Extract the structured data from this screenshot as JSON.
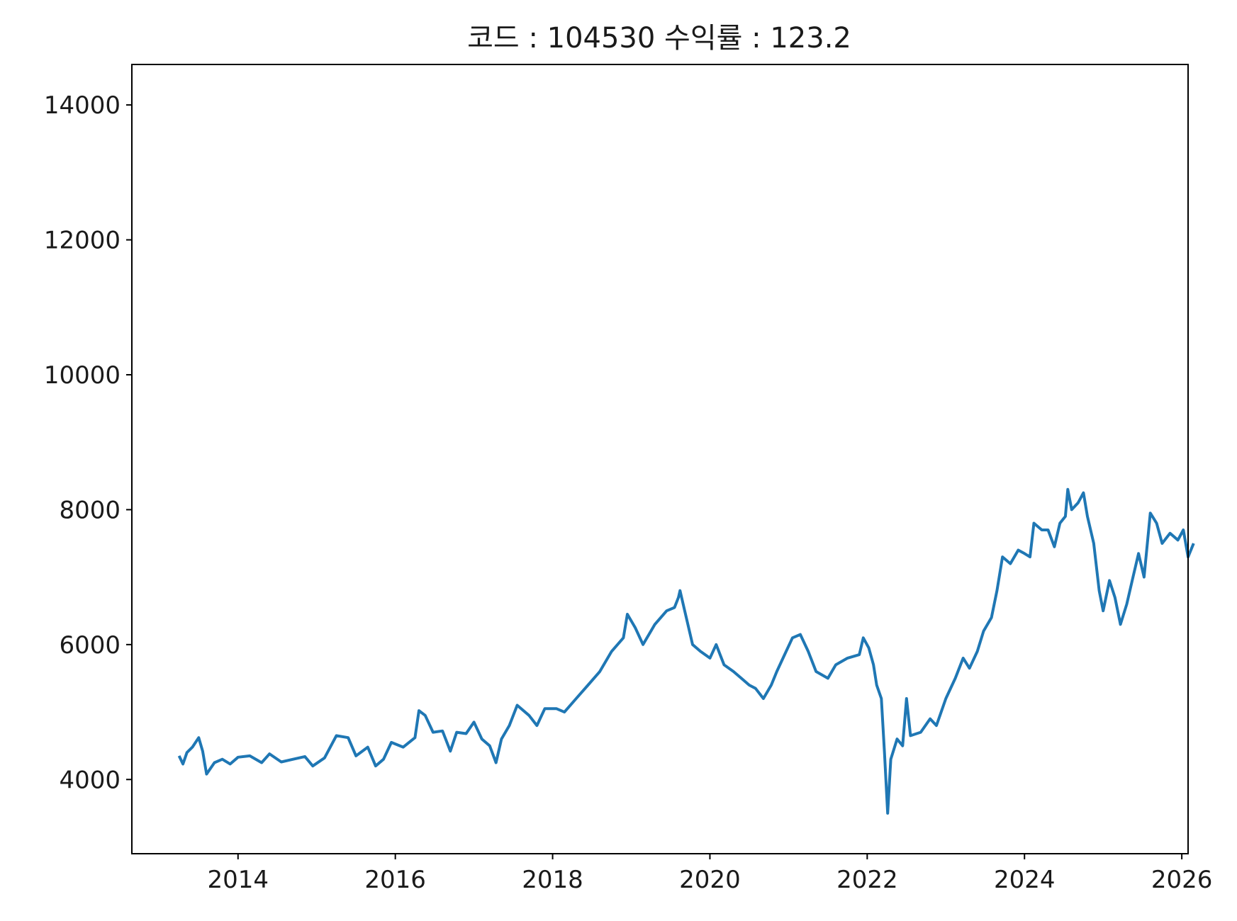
{
  "chart_data": {
    "type": "line",
    "title": "코드 : 104530 수익률 : 123.2",
    "xlabel": "",
    "ylabel": "",
    "x_ticks": [
      "2014",
      "2016",
      "2018",
      "2020",
      "2022",
      "2024",
      "2026"
    ],
    "y_ticks": [
      "4000",
      "6000",
      "8000",
      "10000",
      "12000",
      "14000"
    ],
    "xlim": [
      2012.65,
      2026.08
    ],
    "ylim": [
      2900,
      14600
    ],
    "grid": false,
    "legend": "none",
    "series": [
      {
        "color": "#1f77b4",
        "points": [
          [
            2013.25,
            4350
          ],
          [
            2013.3,
            4230
          ],
          [
            2013.35,
            4400
          ],
          [
            2013.42,
            4480
          ],
          [
            2013.5,
            4620
          ],
          [
            2013.55,
            4420
          ],
          [
            2013.6,
            4080
          ],
          [
            2013.7,
            4250
          ],
          [
            2013.8,
            4300
          ],
          [
            2013.9,
            4230
          ],
          [
            2014.0,
            4330
          ],
          [
            2014.15,
            4350
          ],
          [
            2014.3,
            4250
          ],
          [
            2014.4,
            4380
          ],
          [
            2014.55,
            4260
          ],
          [
            2014.7,
            4300
          ],
          [
            2014.85,
            4340
          ],
          [
            2014.95,
            4200
          ],
          [
            2015.1,
            4320
          ],
          [
            2015.25,
            4650
          ],
          [
            2015.4,
            4620
          ],
          [
            2015.5,
            4350
          ],
          [
            2015.65,
            4480
          ],
          [
            2015.75,
            4200
          ],
          [
            2015.85,
            4300
          ],
          [
            2015.95,
            4550
          ],
          [
            2016.1,
            4480
          ],
          [
            2016.25,
            4620
          ],
          [
            2016.3,
            5020
          ],
          [
            2016.38,
            4950
          ],
          [
            2016.48,
            4700
          ],
          [
            2016.6,
            4720
          ],
          [
            2016.7,
            4420
          ],
          [
            2016.78,
            4700
          ],
          [
            2016.9,
            4680
          ],
          [
            2017.0,
            4850
          ],
          [
            2017.1,
            4600
          ],
          [
            2017.2,
            4500
          ],
          [
            2017.28,
            4250
          ],
          [
            2017.35,
            4600
          ],
          [
            2017.45,
            4800
          ],
          [
            2017.55,
            5100
          ],
          [
            2017.7,
            4950
          ],
          [
            2017.8,
            4800
          ],
          [
            2017.9,
            5050
          ],
          [
            2018.05,
            5050
          ],
          [
            2018.15,
            5000
          ],
          [
            2018.3,
            5200
          ],
          [
            2018.45,
            5400
          ],
          [
            2018.6,
            5600
          ],
          [
            2018.75,
            5900
          ],
          [
            2018.9,
            6100
          ],
          [
            2018.95,
            6450
          ],
          [
            2019.05,
            6250
          ],
          [
            2019.15,
            6000
          ],
          [
            2019.3,
            6300
          ],
          [
            2019.45,
            6500
          ],
          [
            2019.55,
            6550
          ],
          [
            2019.6,
            6700
          ],
          [
            2019.62,
            6800
          ],
          [
            2019.68,
            6500
          ],
          [
            2019.78,
            6000
          ],
          [
            2019.88,
            5900
          ],
          [
            2020.0,
            5800
          ],
          [
            2020.08,
            6000
          ],
          [
            2020.18,
            5700
          ],
          [
            2020.3,
            5600
          ],
          [
            2020.4,
            5500
          ],
          [
            2020.5,
            5400
          ],
          [
            2020.58,
            5350
          ],
          [
            2020.68,
            5200
          ],
          [
            2020.78,
            5400
          ],
          [
            2020.85,
            5600
          ],
          [
            2020.95,
            5850
          ],
          [
            2021.05,
            6100
          ],
          [
            2021.15,
            6150
          ],
          [
            2021.25,
            5900
          ],
          [
            2021.35,
            5600
          ],
          [
            2021.5,
            5500
          ],
          [
            2021.6,
            5700
          ],
          [
            2021.75,
            5800
          ],
          [
            2021.9,
            5850
          ],
          [
            2021.95,
            6100
          ],
          [
            2022.02,
            5950
          ],
          [
            2022.08,
            5700
          ],
          [
            2022.12,
            5400
          ],
          [
            2022.18,
            5200
          ],
          [
            2022.22,
            4400
          ],
          [
            2022.26,
            3500
          ],
          [
            2022.3,
            4300
          ],
          [
            2022.38,
            4600
          ],
          [
            2022.45,
            4500
          ],
          [
            2022.5,
            5200
          ],
          [
            2022.55,
            4650
          ],
          [
            2022.68,
            4700
          ],
          [
            2022.8,
            4900
          ],
          [
            2022.88,
            4800
          ],
          [
            2023.0,
            5200
          ],
          [
            2023.12,
            5500
          ],
          [
            2023.22,
            5800
          ],
          [
            2023.3,
            5650
          ],
          [
            2023.4,
            5900
          ],
          [
            2023.48,
            6200
          ],
          [
            2023.58,
            6400
          ],
          [
            2023.65,
            6800
          ],
          [
            2023.72,
            7300
          ],
          [
            2023.82,
            7200
          ],
          [
            2023.92,
            7400
          ],
          [
            2024.0,
            7350
          ],
          [
            2024.07,
            7300
          ],
          [
            2024.12,
            7800
          ],
          [
            2024.22,
            7700
          ],
          [
            2024.3,
            7700
          ],
          [
            2024.38,
            7450
          ],
          [
            2024.45,
            7800
          ],
          [
            2024.52,
            7900
          ],
          [
            2024.55,
            8300
          ],
          [
            2024.6,
            8000
          ],
          [
            2024.68,
            8100
          ],
          [
            2024.75,
            8250
          ],
          [
            2024.8,
            7900
          ],
          [
            2024.88,
            7500
          ],
          [
            2024.95,
            6800
          ],
          [
            2025.0,
            6500
          ],
          [
            2025.08,
            6950
          ],
          [
            2025.15,
            6700
          ],
          [
            2025.22,
            6300
          ],
          [
            2025.3,
            6600
          ],
          [
            2025.38,
            7000
          ],
          [
            2025.45,
            7350
          ],
          [
            2025.52,
            7000
          ],
          [
            2025.6,
            7950
          ],
          [
            2025.68,
            7800
          ],
          [
            2025.75,
            7500
          ],
          [
            2025.85,
            7650
          ],
          [
            2025.95,
            7550
          ],
          [
            2026.02,
            7700
          ],
          [
            2026.08,
            7300
          ],
          [
            2026.15,
            7500
          ]
        ]
      }
    ]
  }
}
